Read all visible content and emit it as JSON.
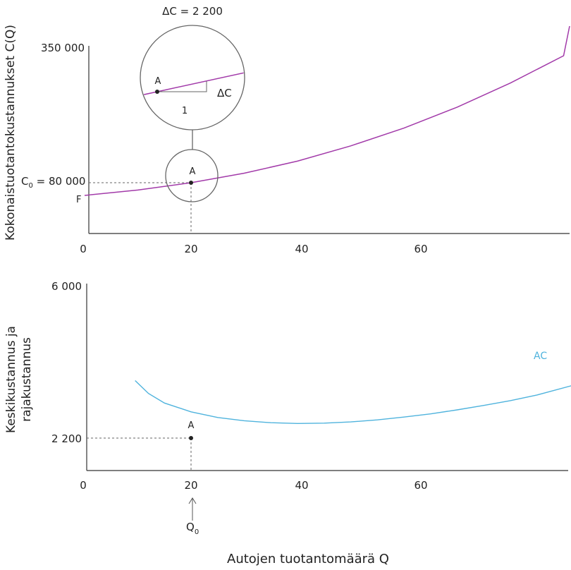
{
  "chart_data": [
    {
      "type": "line",
      "ylabel": "Kokonaistuotantokustannukset C(Q)",
      "x_ticks": [
        "0",
        "20",
        "40",
        "60"
      ],
      "y_tick_label": "350 000",
      "xlim": [
        0,
        94
      ],
      "ylim": [
        0,
        350000
      ],
      "series": [
        {
          "color": "#a23aa9",
          "x": [
            0,
            10,
            20,
            30,
            40,
            50,
            60,
            70,
            80,
            90,
            94
          ],
          "y": [
            60000,
            68500,
            80000,
            95000,
            114000,
            138000,
            166000,
            199000,
            237000,
            280000,
            350000
          ]
        }
      ],
      "point_A": {
        "label": "A",
        "x": 20,
        "y": 80000
      },
      "c0_label": "80 000",
      "f_label": "F",
      "zoom_inset": {
        "title": "ΔC = 2 200",
        "point_label": "A",
        "delta_label": "ΔC",
        "run_label": "1"
      }
    },
    {
      "type": "line",
      "ylabel_line1": "Keskikustannus ja",
      "ylabel_line2": "rajakustannus",
      "x_ticks": [
        "0",
        "20",
        "40",
        "60"
      ],
      "y_tick_top": "6 000",
      "y_tick_point": "2 200",
      "xlim": [
        0,
        94
      ],
      "ylim": [
        0,
        6000
      ],
      "series": [
        {
          "name": "AC",
          "color": "#4fb3dd",
          "x": [
            9.5,
            12,
            15,
            20,
            25,
            30,
            35,
            40,
            45,
            50,
            55,
            60,
            65,
            70,
            75,
            80,
            85,
            92
          ],
          "y": [
            3630,
            3310,
            3070,
            2850,
            2710,
            2630,
            2580,
            2560,
            2570,
            2600,
            2650,
            2720,
            2800,
            2900,
            3010,
            3130,
            3270,
            3520
          ]
        }
      ],
      "point_A": {
        "label": "A",
        "x": 20,
        "y": 2200
      },
      "q0_label": "Q",
      "xlabel": "Autojen tuotantomäärä Q"
    }
  ]
}
